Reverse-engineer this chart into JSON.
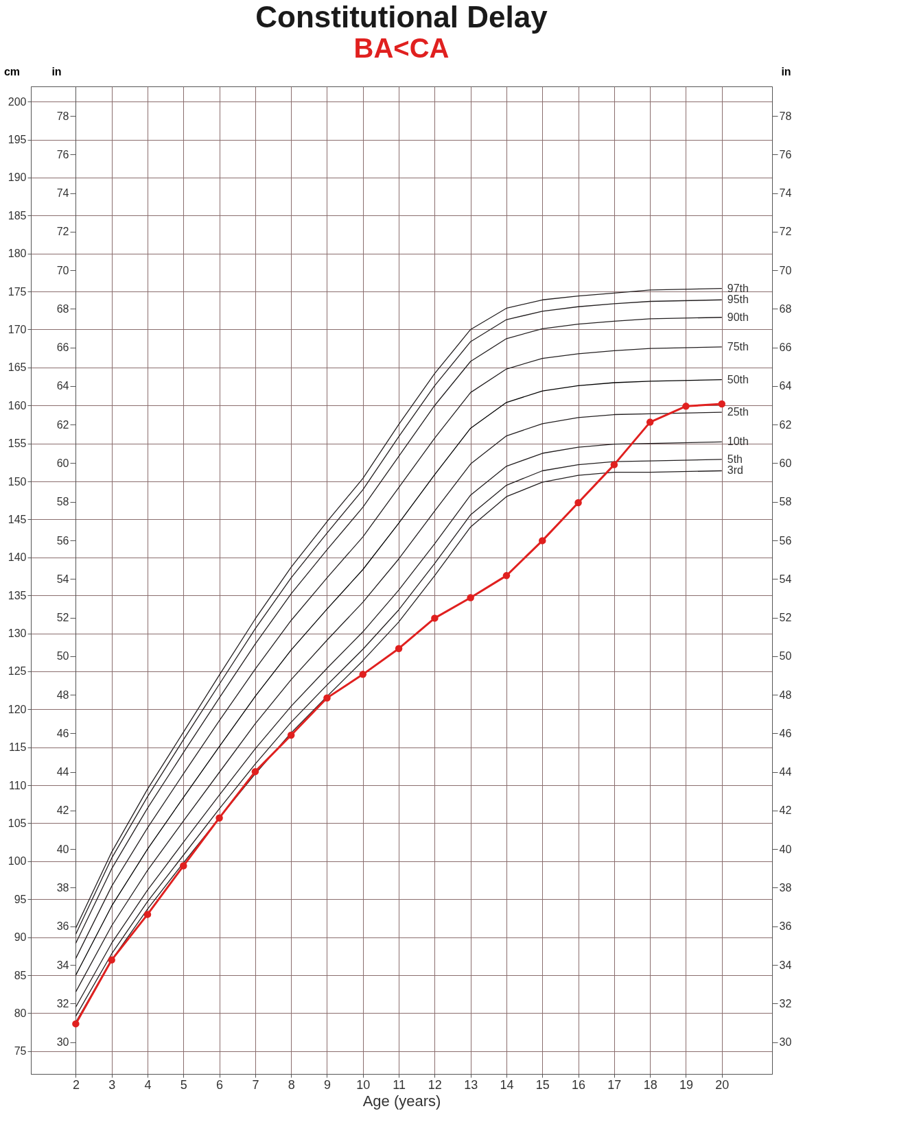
{
  "chart_data": {
    "type": "line",
    "title": "Constitutional Delay",
    "subtitle": "BA<CA",
    "xlabel": "Age (years)",
    "ylabel": "cm",
    "y2label": "in",
    "y3label": "in",
    "xlim": [
      0.75,
      21.4
    ],
    "xticks": [
      2,
      3,
      4,
      5,
      6,
      7,
      8,
      9,
      10,
      11,
      12,
      13,
      14,
      15,
      16,
      17,
      18,
      19,
      20
    ],
    "ylim": [
      72,
      202
    ],
    "yticks": [
      75,
      80,
      85,
      90,
      95,
      100,
      105,
      110,
      115,
      120,
      125,
      130,
      135,
      140,
      145,
      150,
      155,
      160,
      165,
      170,
      175,
      180,
      185,
      190,
      195,
      200
    ],
    "y2lim": [
      28.35,
      79.53
    ],
    "y2ticks": [
      30,
      32,
      34,
      36,
      38,
      40,
      42,
      44,
      46,
      48,
      50,
      52,
      54,
      56,
      58,
      60,
      62,
      64,
      66,
      68,
      70,
      72,
      74,
      76,
      78
    ],
    "y3lim": [
      28.35,
      79.53
    ],
    "y3ticks": [
      30,
      32,
      34,
      36,
      38,
      40,
      42,
      44,
      46,
      48,
      50,
      52,
      54,
      56,
      58,
      60,
      62,
      64,
      66,
      68,
      70,
      72,
      74,
      76,
      78
    ],
    "grid": true,
    "series": [
      {
        "name": "97th",
        "color": "#231f20",
        "marker": "none",
        "x": [
          2,
          3,
          4,
          5,
          6,
          7,
          8,
          9,
          10,
          11,
          12,
          13,
          14,
          15,
          16,
          17,
          18,
          20
        ],
        "values": [
          91.2,
          101.2,
          109.5,
          117.0,
          124.5,
          131.9,
          138.7,
          144.7,
          150.4,
          157.5,
          164.2,
          170.0,
          172.8,
          173.9,
          174.4,
          174.8,
          175.2,
          175.4
        ]
      },
      {
        "name": "95th",
        "color": "#231f20",
        "marker": "none",
        "x": [
          2,
          3,
          4,
          5,
          6,
          7,
          8,
          9,
          10,
          11,
          12,
          13,
          14,
          15,
          16,
          17,
          18,
          20
        ],
        "values": [
          90.4,
          100.4,
          108.5,
          116.0,
          123.3,
          130.6,
          137.3,
          143.2,
          148.9,
          155.9,
          162.6,
          168.4,
          171.3,
          172.4,
          173.0,
          173.4,
          173.7,
          173.9
        ]
      },
      {
        "name": "90th",
        "color": "#231f20",
        "marker": "none",
        "x": [
          2,
          3,
          4,
          5,
          6,
          7,
          8,
          9,
          10,
          11,
          12,
          13,
          14,
          15,
          16,
          17,
          18,
          20
        ],
        "values": [
          89.2,
          99.0,
          107.0,
          114.3,
          121.5,
          128.6,
          135.2,
          141.0,
          146.6,
          153.3,
          160.0,
          165.8,
          168.8,
          170.1,
          170.7,
          171.1,
          171.4,
          171.6
        ]
      },
      {
        "name": "75th",
        "color": "#231f20",
        "marker": "none",
        "x": [
          2,
          3,
          4,
          5,
          6,
          7,
          8,
          9,
          10,
          11,
          12,
          13,
          14,
          15,
          16,
          17,
          18,
          20
        ],
        "values": [
          87.2,
          96.7,
          104.4,
          111.5,
          118.5,
          125.3,
          131.7,
          137.3,
          142.7,
          149.2,
          155.7,
          161.7,
          164.8,
          166.2,
          166.8,
          167.2,
          167.5,
          167.7
        ]
      },
      {
        "name": "50th",
        "color": "#000000",
        "marker": "none",
        "x": [
          2,
          3,
          4,
          5,
          6,
          7,
          8,
          9,
          10,
          11,
          12,
          13,
          14,
          15,
          16,
          17,
          18,
          20
        ],
        "values": [
          85.0,
          94.1,
          101.6,
          108.4,
          115.1,
          121.7,
          127.8,
          133.2,
          138.4,
          144.5,
          150.9,
          157.0,
          160.4,
          161.9,
          162.6,
          163.0,
          163.2,
          163.4
        ]
      },
      {
        "name": "25th",
        "color": "#231f20",
        "marker": "none",
        "x": [
          2,
          3,
          4,
          5,
          6,
          7,
          8,
          9,
          10,
          11,
          12,
          13,
          14,
          15,
          16,
          17,
          18,
          20
        ],
        "values": [
          82.8,
          91.5,
          98.8,
          105.3,
          111.7,
          118.1,
          123.9,
          129.1,
          134.1,
          139.8,
          146.1,
          152.3,
          156.0,
          157.6,
          158.4,
          158.8,
          158.9,
          159.1
        ]
      },
      {
        "name": "10th",
        "color": "#231f20",
        "marker": "none",
        "x": [
          2,
          3,
          4,
          5,
          6,
          7,
          8,
          9,
          10,
          11,
          12,
          13,
          14,
          15,
          16,
          17,
          18,
          20
        ],
        "values": [
          80.8,
          89.2,
          96.2,
          102.5,
          108.7,
          114.8,
          120.4,
          125.4,
          130.2,
          135.7,
          141.8,
          148.2,
          152.0,
          153.7,
          154.5,
          154.9,
          155.0,
          155.2
        ]
      },
      {
        "name": "5th",
        "color": "#231f20",
        "marker": "none",
        "x": [
          2,
          3,
          4,
          5,
          6,
          7,
          8,
          9,
          10,
          11,
          12,
          13,
          14,
          15,
          16,
          17,
          18,
          20
        ],
        "values": [
          79.6,
          87.8,
          94.7,
          100.8,
          106.9,
          112.8,
          118.3,
          123.2,
          127.9,
          133.1,
          139.2,
          145.6,
          149.5,
          151.4,
          152.2,
          152.6,
          152.7,
          152.9
        ]
      },
      {
        "name": "3rd",
        "color": "#231f20",
        "marker": "none",
        "x": [
          2,
          3,
          4,
          5,
          6,
          7,
          8,
          9,
          10,
          11,
          12,
          13,
          14,
          15,
          16,
          17,
          18,
          20
        ],
        "values": [
          78.8,
          87.0,
          93.7,
          99.8,
          105.7,
          111.5,
          116.9,
          121.7,
          126.4,
          131.5,
          137.6,
          144.0,
          148.0,
          149.9,
          150.8,
          151.2,
          151.2,
          151.4
        ]
      },
      {
        "color": "#e0201f",
        "marker": "circle",
        "x": [
          2,
          3,
          4,
          5,
          6,
          7,
          8,
          9,
          10,
          11,
          12,
          13,
          14,
          15,
          16,
          17,
          18,
          19,
          20
        ],
        "values": [
          78.6,
          87.0,
          93.0,
          99.4,
          105.7,
          111.8,
          116.6,
          121.5,
          124.6,
          128.0,
          132.0,
          134.7,
          137.6,
          142.2,
          147.2,
          152.2,
          157.8,
          159.9,
          160.2
        ]
      }
    ]
  }
}
